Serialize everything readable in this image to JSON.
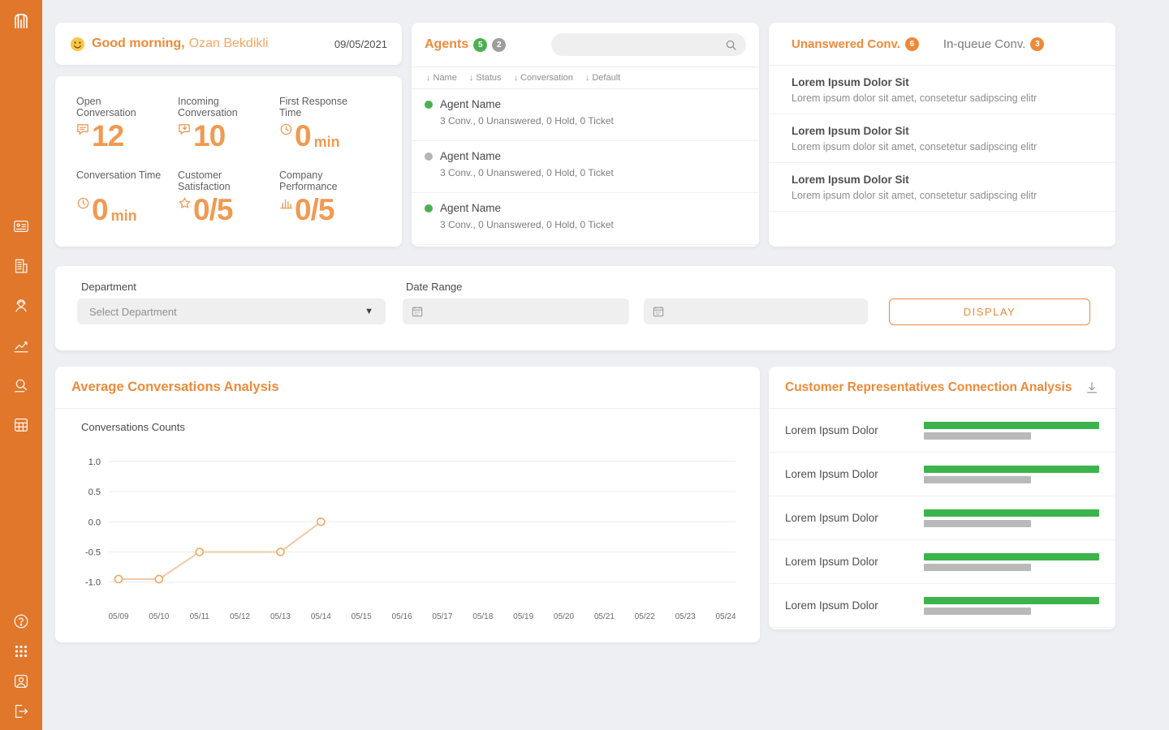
{
  "colors": {
    "accent": "#ed8a39",
    "accent_light": "#f09a52",
    "sidebar": "#e0772b",
    "green": "#3cb44b",
    "gray": "#b9b9b9",
    "line": "#f3c9a4",
    "marker": "#eca863"
  },
  "icons": {
    "sort": "↓",
    "dropdown": "▼"
  },
  "greeting": {
    "title": "Good morning,",
    "name": "Ozan Bekdikli",
    "date": "09/05/2021"
  },
  "stats": {
    "items": [
      {
        "label": "Open Conversation",
        "value": "12",
        "unit": ""
      },
      {
        "label": "Incoming Conversation",
        "value": "10",
        "unit": ""
      },
      {
        "label": "First Response Time",
        "value": "0",
        "unit": "min"
      },
      {
        "label": "Conversation Time",
        "value": "0",
        "unit": "min"
      },
      {
        "label": "Customer Satisfaction",
        "value": "0/5",
        "unit": ""
      },
      {
        "label": "Company Performance",
        "value": "0/5",
        "unit": ""
      }
    ]
  },
  "agents": {
    "title": "Agents",
    "online_badge": "5",
    "offline_badge": "2",
    "search_value": "",
    "columns": [
      {
        "label": "Name"
      },
      {
        "label": "Status"
      },
      {
        "label": "Conversation"
      },
      {
        "label": "Default"
      }
    ],
    "rows": [
      {
        "name": "Agent Name",
        "status": "online",
        "details": "3 Conv., 0 Unanswered, 0 Hold, 0 Ticket"
      },
      {
        "name": "Agent Name",
        "status": "offline",
        "details": "3 Conv., 0 Unanswered, 0 Hold, 0 Ticket"
      },
      {
        "name": "Agent Name",
        "status": "online",
        "details": "3 Conv., 0 Unanswered, 0 Hold, 0 Ticket"
      }
    ]
  },
  "conversations": {
    "tabs": [
      {
        "label": "Unanswered Conv.",
        "badge": "6"
      },
      {
        "label": "In-queue Conv.",
        "badge": "3"
      }
    ],
    "items": [
      {
        "title": "Lorem Ipsum Dolor Sit",
        "subtitle": "Lorem ipsum dolor sit amet, consetetur sadipscing elitr"
      },
      {
        "title": "Lorem Ipsum Dolor Sit",
        "subtitle": "Lorem ipsum dolor sit amet, consetetur sadipscing elitr"
      },
      {
        "title": "Lorem Ipsum Dolor Sit",
        "subtitle": "Lorem ipsum dolor sit amet, consetetur sadipscing elitr"
      }
    ]
  },
  "filters": {
    "department_label": "Department",
    "department_value": "Select Department",
    "date_range_label": "Date Range",
    "date_from_value": "",
    "date_to_value": "",
    "display_button": "DISPLAY"
  },
  "chart_data": {
    "type": "line",
    "title": "Average Conversations Analysis",
    "ylabel": "Conversations Counts",
    "x": [
      "05/09",
      "05/10",
      "05/11",
      "05/12",
      "05/13",
      "05/14",
      "05/15",
      "05/16",
      "05/17",
      "05/18",
      "05/19",
      "05/20",
      "05/21",
      "05/22",
      "05/23",
      "05/24"
    ],
    "points": [
      {
        "x": "05/09",
        "y": -0.95
      },
      {
        "x": "05/10",
        "y": -0.95
      },
      {
        "x": "05/11",
        "y": -0.5
      },
      {
        "x": "05/13",
        "y": -0.5
      },
      {
        "x": "05/14",
        "y": 0.0
      }
    ],
    "yticks": [
      1.0,
      0.5,
      0.0,
      -0.5,
      -1.0
    ],
    "ylim": [
      -1.3,
      1.2
    ],
    "grid": true,
    "legend": false
  },
  "connection": {
    "title": "Customer Representatives Connection Analysis",
    "rows": [
      {
        "label": "Lorem Ipsum Dolor",
        "primary_pct": 100,
        "secondary_pct": 61
      },
      {
        "label": "Lorem Ipsum Dolor",
        "primary_pct": 100,
        "secondary_pct": 61
      },
      {
        "label": "Lorem Ipsum Dolor",
        "primary_pct": 100,
        "secondary_pct": 61
      },
      {
        "label": "Lorem Ipsum Dolor",
        "primary_pct": 100,
        "secondary_pct": 61
      },
      {
        "label": "Lorem Ipsum Dolor",
        "primary_pct": 100,
        "secondary_pct": 61
      }
    ]
  }
}
